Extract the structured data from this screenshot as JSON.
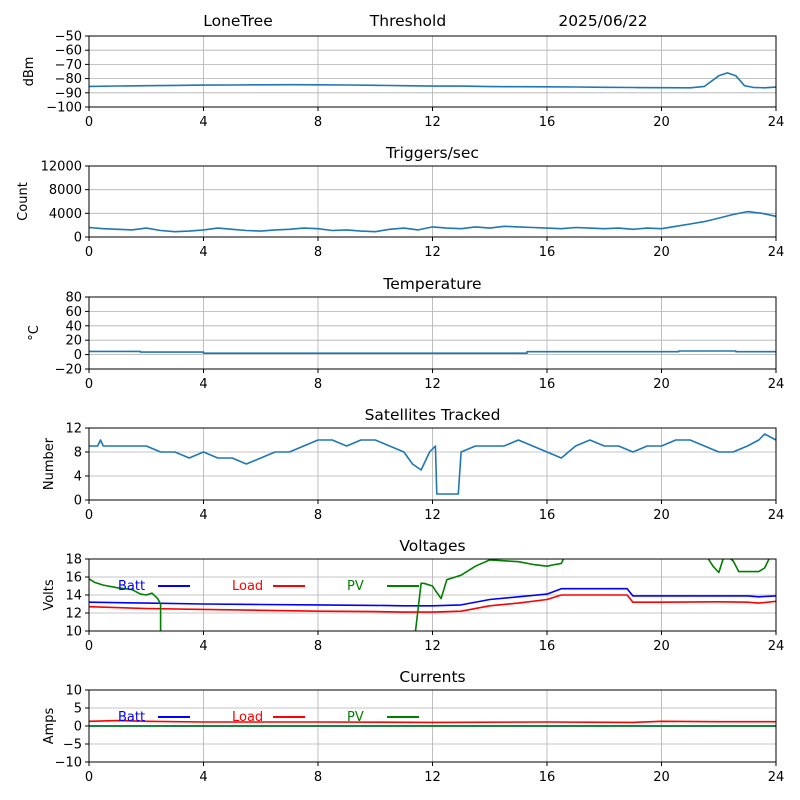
{
  "header": {
    "site": "LoneTree",
    "mode": "Threshold",
    "date": "2025/06/22"
  },
  "chart_data": [
    {
      "type": "line",
      "title": "",
      "ylabel": "dBm",
      "xlim": [
        0,
        24
      ],
      "ylim": [
        -100,
        -50
      ],
      "xticks": [
        0,
        4,
        8,
        12,
        16,
        20,
        24
      ],
      "yticks": [
        -100,
        -90,
        -80,
        -70,
        -60,
        -50
      ],
      "grid": true,
      "series": [
        {
          "color": "#1f77b4",
          "x": [
            0,
            1,
            2,
            3,
            4,
            5,
            6,
            7,
            8,
            9,
            10,
            11,
            12,
            13,
            14,
            15,
            16,
            17,
            18,
            19,
            20,
            21,
            21.5,
            22,
            22.3,
            22.6,
            22.9,
            23.2,
            23.6,
            24
          ],
          "y": [
            -85.5,
            -85.2,
            -85,
            -84.8,
            -84.6,
            -84.5,
            -84.4,
            -84.3,
            -84.4,
            -84.5,
            -84.7,
            -85,
            -85.3,
            -85.3,
            -85.6,
            -85.7,
            -85.8,
            -85.9,
            -86.1,
            -86.3,
            -86.4,
            -86.5,
            -85.5,
            -78,
            -76,
            -78,
            -85,
            -86.2,
            -86.5,
            -86
          ]
        }
      ]
    },
    {
      "type": "line",
      "title": "Triggers/sec",
      "ylabel": "Count",
      "xlim": [
        0,
        24
      ],
      "ylim": [
        0,
        12000
      ],
      "xticks": [
        0,
        4,
        8,
        12,
        16,
        20,
        24
      ],
      "yticks": [
        0,
        4000,
        8000,
        12000
      ],
      "grid": true,
      "series": [
        {
          "color": "#1f77b4",
          "x": [
            0,
            0.5,
            1,
            1.5,
            2,
            2.5,
            3,
            3.5,
            4,
            4.5,
            5,
            5.5,
            6,
            6.5,
            7,
            7.5,
            8,
            8.5,
            9,
            9.5,
            10,
            10.5,
            11,
            11.5,
            12,
            12.5,
            13,
            13.5,
            14,
            14.5,
            15,
            15.5,
            16,
            16.5,
            17,
            17.5,
            18,
            18.5,
            19,
            19.5,
            20,
            20.5,
            21,
            21.5,
            22,
            22.5,
            23,
            23.5,
            24
          ],
          "y": [
            1600,
            1400,
            1300,
            1200,
            1500,
            1100,
            900,
            1000,
            1200,
            1500,
            1300,
            1100,
            1000,
            1200,
            1300,
            1500,
            1400,
            1100,
            1200,
            1000,
            900,
            1300,
            1500,
            1200,
            1700,
            1500,
            1400,
            1700,
            1500,
            1800,
            1700,
            1600,
            1500,
            1400,
            1600,
            1500,
            1400,
            1500,
            1300,
            1500,
            1400,
            1800,
            2200,
            2600,
            3200,
            3800,
            4300,
            4000,
            3500
          ]
        }
      ]
    },
    {
      "type": "line",
      "title": "Temperature",
      "ylabel": "°C",
      "xlim": [
        0,
        24
      ],
      "ylim": [
        -20,
        80
      ],
      "xticks": [
        0,
        4,
        8,
        12,
        16,
        20,
        24
      ],
      "yticks": [
        -20,
        0,
        20,
        40,
        60,
        80
      ],
      "grid": true,
      "series": [
        {
          "color": "#1f77b4",
          "x": [
            0,
            1.8,
            1.8,
            4,
            4,
            15.3,
            15.3,
            20.6,
            20.6,
            22.6,
            22.6,
            24
          ],
          "y": [
            4.5,
            4.5,
            3.5,
            3.5,
            2,
            2,
            4,
            4,
            5,
            5,
            4,
            4
          ]
        }
      ]
    },
    {
      "type": "line",
      "title": "Satellites Tracked",
      "ylabel": "Number",
      "xlim": [
        0,
        24
      ],
      "ylim": [
        0,
        12
      ],
      "xticks": [
        0,
        4,
        8,
        12,
        16,
        20,
        24
      ],
      "yticks": [
        0,
        4,
        8,
        12
      ],
      "grid": true,
      "series": [
        {
          "color": "#1f77b4",
          "x": [
            0,
            0.3,
            0.4,
            0.5,
            1,
            1.5,
            2,
            2.5,
            3,
            3.5,
            4,
            4.5,
            5,
            5.5,
            6,
            6.5,
            7,
            7.5,
            8,
            8.5,
            9,
            9.5,
            10,
            10.5,
            11,
            11.3,
            11.6,
            11.9,
            12.1,
            12.15,
            12.9,
            13,
            13.5,
            14,
            14.5,
            15,
            15.5,
            16,
            16.5,
            17,
            17.5,
            18,
            18.5,
            19,
            19.5,
            20,
            20.5,
            21,
            21.5,
            22,
            22.5,
            23,
            23.4,
            23.6,
            24
          ],
          "y": [
            9,
            9,
            10,
            9,
            9,
            9,
            9,
            8,
            8,
            7,
            8,
            7,
            7,
            6,
            7,
            8,
            8,
            9,
            10,
            10,
            9,
            10,
            10,
            9,
            8,
            6,
            5,
            8,
            9,
            1,
            1,
            8,
            9,
            9,
            9,
            10,
            9,
            8,
            7,
            9,
            10,
            9,
            9,
            8,
            9,
            9,
            10,
            10,
            9,
            8,
            8,
            9,
            10,
            11,
            10
          ]
        }
      ]
    },
    {
      "type": "line",
      "title": "Voltages",
      "ylabel": "Volts",
      "xlim": [
        0,
        24
      ],
      "ylim": [
        10,
        18
      ],
      "xticks": [
        0,
        4,
        8,
        12,
        16,
        20,
        24
      ],
      "yticks": [
        10,
        12,
        14,
        16,
        18
      ],
      "grid": true,
      "legend": [
        {
          "name": "Batt",
          "color": "#0000ff"
        },
        {
          "name": "Load",
          "color": "#ff0000"
        },
        {
          "name": "PV",
          "color": "#008000"
        }
      ],
      "series": [
        {
          "name": "Batt",
          "color": "#0000ff",
          "x": [
            0,
            2,
            4,
            6,
            8,
            10,
            11,
            12,
            13,
            14,
            15,
            16,
            16.5,
            18,
            18.8,
            19,
            20,
            22,
            23,
            23.4,
            24
          ],
          "y": [
            13.2,
            13.1,
            13.0,
            12.95,
            12.9,
            12.85,
            12.8,
            12.8,
            12.9,
            13.5,
            13.8,
            14.1,
            14.7,
            14.7,
            14.7,
            13.9,
            13.9,
            13.9,
            13.9,
            13.8,
            13.9
          ]
        },
        {
          "name": "Load",
          "color": "#ff0000",
          "x": [
            0,
            2,
            4,
            6,
            8,
            10,
            11,
            12,
            13,
            14,
            15,
            16,
            16.5,
            18,
            18.8,
            19,
            20,
            22,
            23,
            23.4,
            24
          ],
          "y": [
            12.7,
            12.5,
            12.4,
            12.3,
            12.2,
            12.15,
            12.1,
            12.1,
            12.2,
            12.8,
            13.1,
            13.5,
            14.0,
            14.0,
            14.0,
            13.2,
            13.2,
            13.25,
            13.2,
            13.1,
            13.3
          ]
        },
        {
          "name": "PV",
          "color": "#008000",
          "x": [
            0,
            0.2,
            0.5,
            1,
            1.5,
            1.8,
            2,
            2.2,
            2.4,
            2.5,
            2.5,
            11.4,
            11.6,
            11.7,
            12,
            12.1,
            12.3,
            12.5,
            12.8,
            13,
            13.3,
            13.5,
            14,
            14.5,
            15,
            15.5,
            16,
            16.3,
            16.5,
            16.6,
            21.6,
            21.8,
            22,
            22.2,
            22.5,
            22.7,
            23.4,
            23.6,
            23.8
          ],
          "y": [
            15.8,
            15.4,
            15.1,
            14.8,
            14.6,
            14.1,
            14.0,
            14.2,
            13.6,
            13.0,
            9.8,
            9.8,
            15.3,
            15.3,
            15.0,
            14.5,
            13.6,
            15.7,
            16.0,
            16.2,
            16.8,
            17.2,
            17.9,
            17.8,
            17.7,
            17.4,
            17.2,
            17.4,
            17.5,
            18.2,
            18.2,
            17.2,
            16.5,
            18.5,
            17.8,
            16.6,
            16.6,
            17.0,
            18.3
          ]
        }
      ]
    },
    {
      "type": "line",
      "title": "Currents",
      "ylabel": "Amps",
      "xlim": [
        0,
        24
      ],
      "ylim": [
        -10,
        10
      ],
      "xticks": [
        0,
        4,
        8,
        12,
        16,
        20,
        24
      ],
      "yticks": [
        -10,
        -5,
        0,
        5,
        10
      ],
      "grid": true,
      "legend": [
        {
          "name": "Batt",
          "color": "#0000ff"
        },
        {
          "name": "Load",
          "color": "#ff0000"
        },
        {
          "name": "PV",
          "color": "#008000"
        }
      ],
      "series": [
        {
          "name": "Batt",
          "color": "#0000ff",
          "x": [
            0,
            2,
            4,
            8,
            12,
            16,
            20,
            24
          ],
          "y": [
            0,
            0,
            0,
            0,
            0,
            0,
            0,
            0
          ]
        },
        {
          "name": "Load",
          "color": "#ff0000",
          "x": [
            0,
            1,
            2,
            4,
            8,
            12,
            16,
            19,
            20,
            22,
            24
          ],
          "y": [
            1.3,
            1.5,
            1.3,
            1.1,
            1.1,
            1.0,
            1.1,
            1.0,
            1.3,
            1.2,
            1.2
          ]
        },
        {
          "name": "PV",
          "color": "#008000",
          "x": [
            0,
            4,
            8,
            12,
            16,
            20,
            24
          ],
          "y": [
            0,
            0,
            0,
            0,
            0,
            0,
            0
          ]
        }
      ]
    }
  ]
}
